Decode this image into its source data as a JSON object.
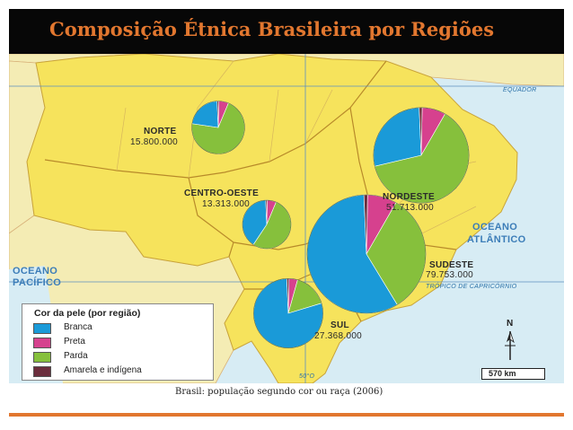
{
  "title": "Composição Étnica Brasileira por Regiões",
  "caption": "Brasil: população segundo cor ou raça (2006)",
  "colors": {
    "branca": "#1a9ad8",
    "preta": "#d6418e",
    "parda": "#86c03c",
    "amarela_indigena": "#6b2d3c",
    "brazil": "#f6e35c",
    "neighbors": "#f4ecb4",
    "ocean": "#d7ecf4",
    "accent": "#e2772f"
  },
  "legend": {
    "title": "Cor da pele (por região)",
    "items": [
      {
        "key": "branca",
        "label": "Branca"
      },
      {
        "key": "preta",
        "label": "Preta"
      },
      {
        "key": "parda",
        "label": "Parda"
      },
      {
        "key": "amarela_indigena",
        "label": "Amarela e indígena"
      }
    ]
  },
  "regions": [
    {
      "id": "norte",
      "name": "NORTE",
      "population": "15.800.000",
      "population_value": 15800000,
      "shares": {
        "branca": 22,
        "preta": 6,
        "parda": 71,
        "amarela_indigena": 1
      }
    },
    {
      "id": "nordeste",
      "name": "NORDESTE",
      "population": "51.713.000",
      "population_value": 51713000,
      "shares": {
        "branca": 28,
        "preta": 8,
        "parda": 63,
        "amarela_indigena": 1
      }
    },
    {
      "id": "centro_oeste",
      "name": "CENTRO-OESTE",
      "population": "13.313.000",
      "population_value": 13313000,
      "shares": {
        "branca": 40,
        "preta": 6,
        "parda": 53,
        "amarela_indigena": 1
      }
    },
    {
      "id": "sudeste",
      "name": "SUDESTE",
      "population": "79.753.000",
      "population_value": 79753000,
      "shares": {
        "branca": 58,
        "preta": 8,
        "parda": 33,
        "amarela_indigena": 1
      }
    },
    {
      "id": "sul",
      "name": "SUL",
      "population": "27.368.000",
      "population_value": 27368000,
      "shares": {
        "branca": 79,
        "preta": 4,
        "parda": 16,
        "amarela_indigena": 1
      }
    }
  ],
  "map_labels": {
    "equador": "EQUADOR",
    "tropico": "TRÓPICO DE CAPRICÓRNIO",
    "meridiano": "50°O",
    "oceano_atlantico_1": "OCEANO",
    "oceano_atlantico_2": "ATLÂNTICO",
    "oceano_pacifico_1": "OCEANO",
    "oceano_pacifico_2": "PACÍFICO",
    "compass_n": "N",
    "scale": "570 km"
  }
}
